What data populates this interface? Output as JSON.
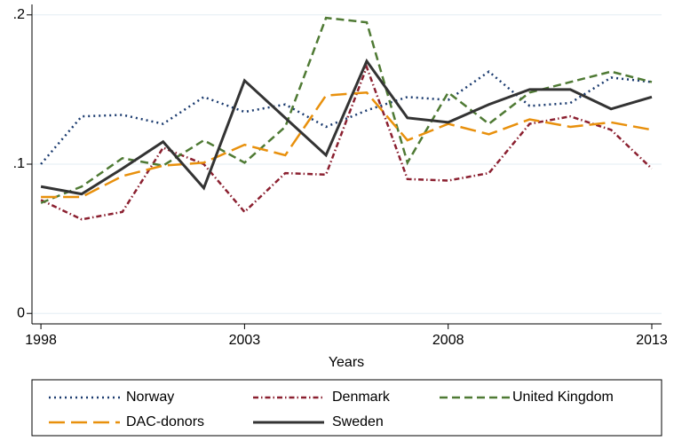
{
  "chart_data": {
    "type": "line",
    "xlabel": "Years",
    "x": [
      1998,
      1999,
      2000,
      2001,
      2002,
      2003,
      2004,
      2005,
      2006,
      2007,
      2008,
      2009,
      2010,
      2011,
      2012,
      2013
    ],
    "series": [
      {
        "name": "Norway",
        "color": "#1a3a6e",
        "linestyle": "dotted",
        "values": [
          0.1,
          0.132,
          0.133,
          0.127,
          0.145,
          0.135,
          0.14,
          0.125,
          0.136,
          0.145,
          0.143,
          0.162,
          0.139,
          0.141,
          0.158,
          0.155
        ]
      },
      {
        "name": "Denmark",
        "color": "#8b2030",
        "linestyle": "dashdot",
        "values": [
          0.076,
          0.063,
          0.068,
          0.111,
          0.1,
          0.068,
          0.094,
          0.093,
          0.165,
          0.09,
          0.089,
          0.094,
          0.127,
          0.132,
          0.123,
          0.097
        ]
      },
      {
        "name": "United Kingdom",
        "color": "#4f7a34",
        "linestyle": "dashed",
        "values": [
          0.074,
          0.085,
          0.104,
          0.099,
          0.116,
          0.101,
          0.125,
          0.198,
          0.195,
          0.101,
          0.148,
          0.127,
          0.148,
          0.155,
          0.162,
          0.155
        ]
      },
      {
        "name": "DAC-donors",
        "color": "#e8900c",
        "linestyle": "longdash",
        "values": [
          0.078,
          0.078,
          0.092,
          0.099,
          0.101,
          0.113,
          0.106,
          0.146,
          0.148,
          0.116,
          0.127,
          0.12,
          0.13,
          0.125,
          0.128,
          0.123
        ]
      },
      {
        "name": "Sweden",
        "color": "#333333",
        "linestyle": "solid",
        "values": [
          0.085,
          0.08,
          0.097,
          0.115,
          0.084,
          0.156,
          0.131,
          0.106,
          0.169,
          0.131,
          0.128,
          0.14,
          0.15,
          0.15,
          0.137,
          0.145
        ]
      }
    ],
    "xlim": [
      1997.78,
      2013.24
    ],
    "xticks": [
      1998,
      2003,
      2008,
      2013
    ],
    "ylim": [
      -0.007,
      0.207
    ],
    "yticks": [
      0,
      {
        "value": 0.1,
        "label": ".1"
      },
      {
        "value": 0.2,
        "label": ".2"
      }
    ],
    "grid": true,
    "legend": "bottom"
  }
}
